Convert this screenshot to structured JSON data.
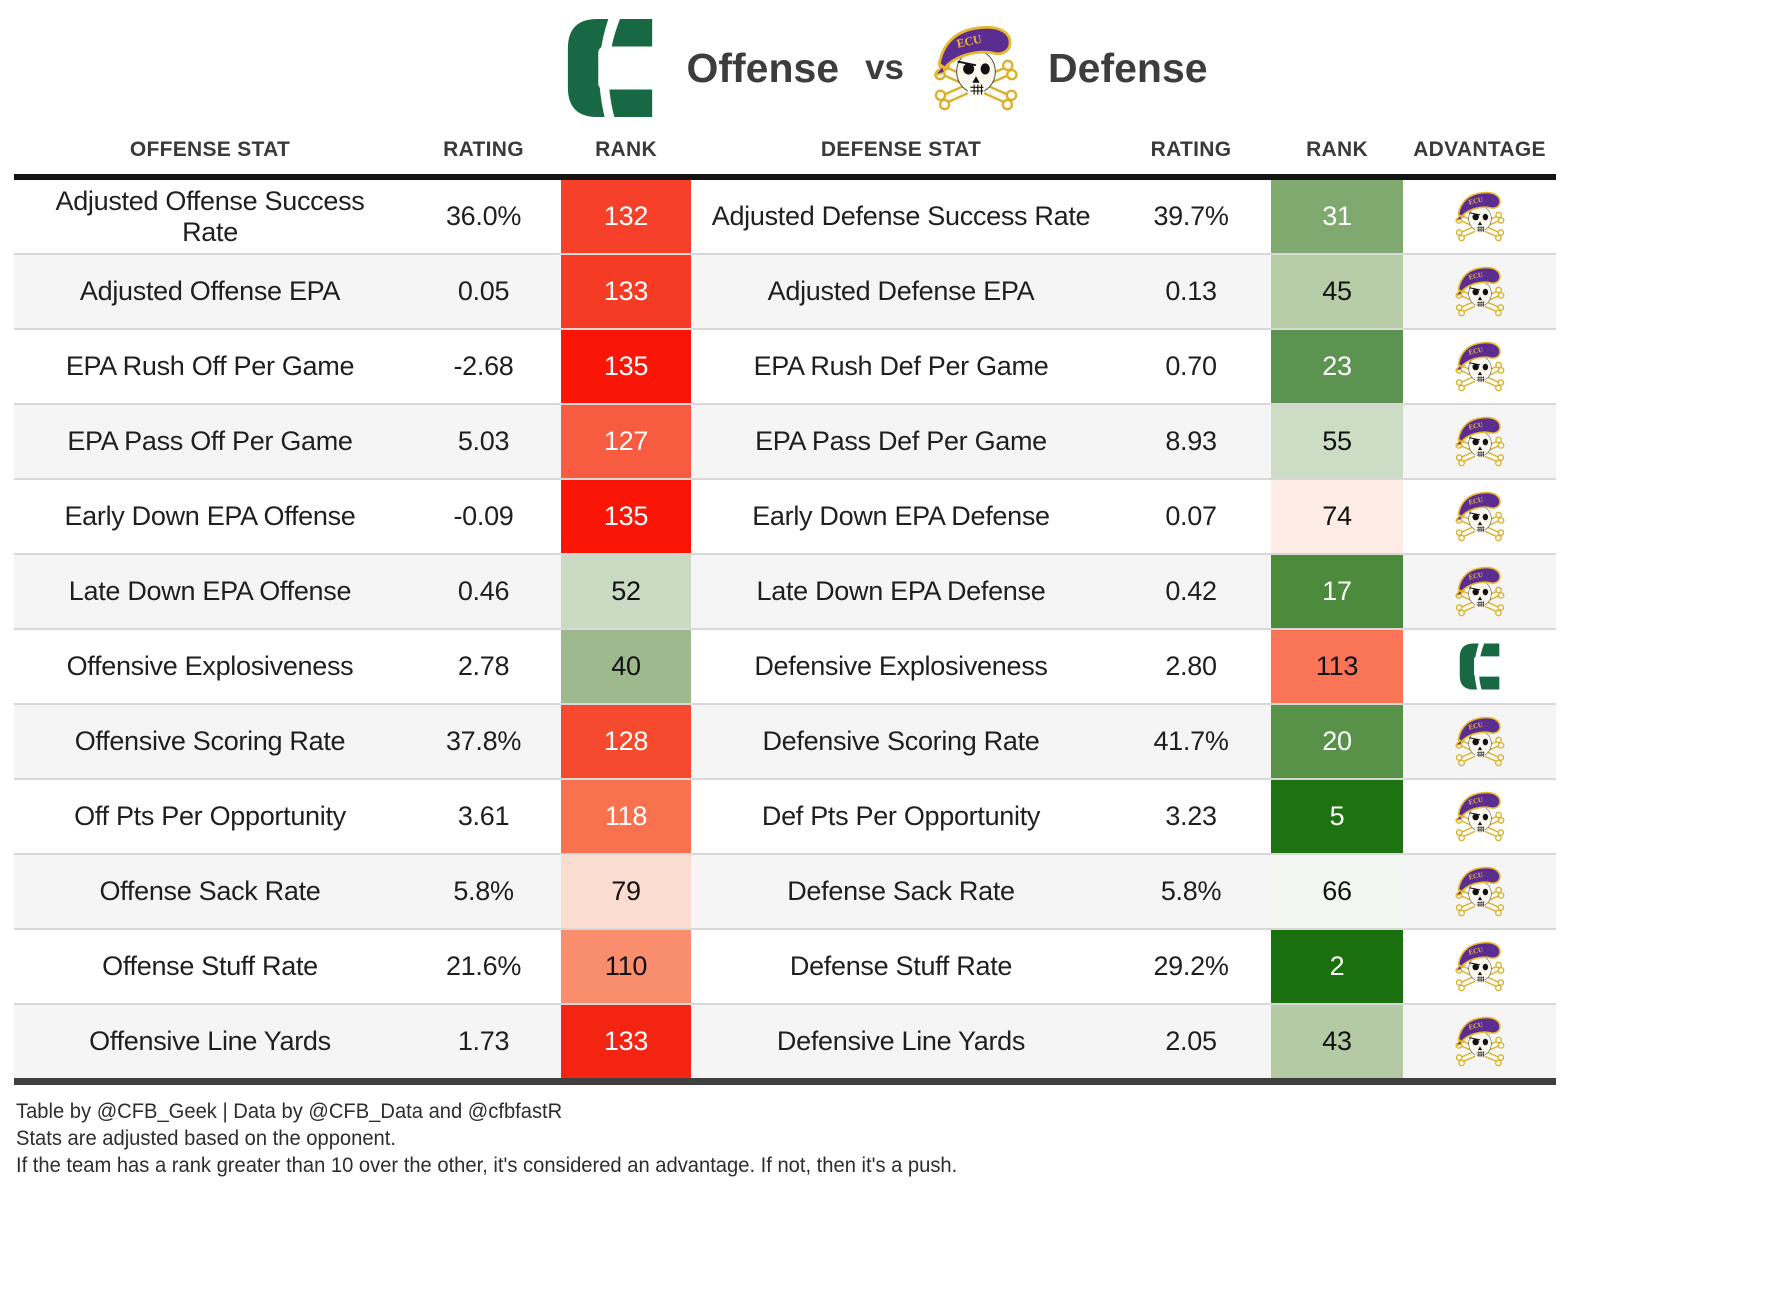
{
  "header": {
    "offense_label": "Offense",
    "vs_label": "vs",
    "defense_label": "Defense",
    "offense_logo": "charlotte-logo",
    "defense_logo": "ecu-logo"
  },
  "chart_data": {
    "type": "table",
    "title": "Charlotte Offense vs ECU Defense",
    "columns": [
      "OFFENSE STAT",
      "RATING",
      "RANK",
      "DEFENSE STAT",
      "RATING",
      "RANK",
      "ADVANTAGE"
    ],
    "rows": [
      {
        "offense_stat": "Adjusted Offense Success Rate",
        "offense_rating": "36.0%",
        "offense_rank": "132",
        "offense_rank_bg": "#f6402a",
        "offense_rank_fg": "#ffffff",
        "defense_stat": "Adjusted Defense Success Rate",
        "defense_rating": "39.7%",
        "defense_rank": "31",
        "defense_rank_bg": "#7fa96e",
        "defense_rank_fg": "#ffffff",
        "advantage": "ecu"
      },
      {
        "offense_stat": "Adjusted Offense EPA",
        "offense_rating": "0.05",
        "offense_rank": "133",
        "offense_rank_bg": "#f63b24",
        "offense_rank_fg": "#ffffff",
        "defense_stat": "Adjusted Defense EPA",
        "defense_rating": "0.13",
        "defense_rank": "45",
        "defense_rank_bg": "#b6cda8",
        "defense_rank_fg": "#111111",
        "advantage": "ecu"
      },
      {
        "offense_stat": "EPA Rush Off Per Game",
        "offense_rating": "-2.68",
        "offense_rank": "135",
        "offense_rank_bg": "#fb1507",
        "offense_rank_fg": "#ffffff",
        "defense_stat": "EPA Rush Def Per Game",
        "defense_rating": "0.70",
        "defense_rank": "23",
        "defense_rank_bg": "#5d9350",
        "defense_rank_fg": "#ffffff",
        "advantage": "ecu"
      },
      {
        "offense_stat": "EPA Pass Off Per Game",
        "offense_rating": "5.03",
        "offense_rank": "127",
        "offense_rank_bg": "#f75c40",
        "offense_rank_fg": "#ffffff",
        "defense_stat": "EPA Pass Def Per Game",
        "defense_rating": "8.93",
        "defense_rank": "55",
        "defense_rank_bg": "#cdddc5",
        "defense_rank_fg": "#111111",
        "advantage": "ecu"
      },
      {
        "offense_stat": "Early Down EPA Offense",
        "offense_rating": "-0.09",
        "offense_rank": "135",
        "offense_rank_bg": "#fb1507",
        "offense_rank_fg": "#ffffff",
        "defense_stat": "Early Down EPA Defense",
        "defense_rating": "0.07",
        "defense_rank": "74",
        "defense_rank_bg": "#fdece6",
        "defense_rank_fg": "#111111",
        "advantage": "ecu"
      },
      {
        "offense_stat": "Late Down EPA Offense",
        "offense_rating": "0.46",
        "offense_rank": "52",
        "offense_rank_bg": "#cbdac3",
        "offense_rank_fg": "#111111",
        "defense_stat": "Late Down EPA Defense",
        "defense_rating": "0.42",
        "defense_rank": "17",
        "defense_rank_bg": "#4c8b3c",
        "defense_rank_fg": "#ffffff",
        "advantage": "ecu"
      },
      {
        "offense_stat": "Offensive Explosiveness",
        "offense_rating": "2.78",
        "offense_rank": "40",
        "offense_rank_bg": "#9eb98d",
        "offense_rank_fg": "#111111",
        "defense_stat": "Defensive Explosiveness",
        "defense_rating": "2.80",
        "defense_rank": "113",
        "defense_rank_bg": "#fa7457",
        "defense_rank_fg": "#111111",
        "advantage": "charlotte"
      },
      {
        "offense_stat": "Offensive Scoring Rate",
        "offense_rating": "37.8%",
        "offense_rank": "128",
        "offense_rank_bg": "#f64a2e",
        "offense_rank_fg": "#ffffff",
        "defense_stat": "Defensive Scoring Rate",
        "defense_rating": "41.7%",
        "defense_rank": "20",
        "defense_rank_bg": "#579248",
        "defense_rank_fg": "#ffffff",
        "advantage": "ecu"
      },
      {
        "offense_stat": "Off Pts Per Opportunity",
        "offense_rating": "3.61",
        "offense_rank": "118",
        "offense_rank_bg": "#f8724f",
        "offense_rank_fg": "#ffffff",
        "defense_stat": "Def Pts Per Opportunity",
        "defense_rating": "3.23",
        "defense_rank": "5",
        "defense_rank_bg": "#1e7211",
        "defense_rank_fg": "#ffffff",
        "advantage": "ecu"
      },
      {
        "offense_stat": "Offense Sack Rate",
        "offense_rating": "5.8%",
        "offense_rank": "79",
        "offense_rank_bg": "#fbdcd1",
        "offense_rank_fg": "#111111",
        "defense_stat": "Defense Sack Rate",
        "defense_rating": "5.8%",
        "defense_rank": "66",
        "defense_rank_bg": "#f3f6f1",
        "defense_rank_fg": "#111111",
        "advantage": "ecu"
      },
      {
        "offense_stat": "Offense Stuff Rate",
        "offense_rating": "21.6%",
        "offense_rank": "110",
        "offense_rank_bg": "#f98e6e",
        "offense_rank_fg": "#111111",
        "defense_stat": "Defense Stuff Rate",
        "defense_rating": "29.2%",
        "defense_rank": "2",
        "defense_rank_bg": "#1a6f0e",
        "defense_rank_fg": "#ffffff",
        "advantage": "ecu"
      },
      {
        "offense_stat": "Offensive Line Yards",
        "offense_rating": "1.73",
        "offense_rank": "133",
        "offense_rank_bg": "#f42413",
        "offense_rank_fg": "#ffffff",
        "defense_stat": "Defensive Line Yards",
        "defense_rating": "2.05",
        "defense_rank": "43",
        "defense_rank_bg": "#b3caa5",
        "defense_rank_fg": "#111111",
        "advantage": "ecu"
      }
    ]
  },
  "footer": {
    "line1": "Table by @CFB_Geek | Data by @CFB_Data and @cfbfastR",
    "line2": "Stats are adjusted based on the opponent.",
    "line3": "If the team has a rank greater than 10 over the other, it's considered an advantage. If not, then it's a push."
  },
  "colors": {
    "charlotte_green": "#176843",
    "ecu_purple": "#5c2d91",
    "ecu_gold": "#e8b92e",
    "row_alt": "#f5f5f5",
    "header_rule": "#141414"
  }
}
